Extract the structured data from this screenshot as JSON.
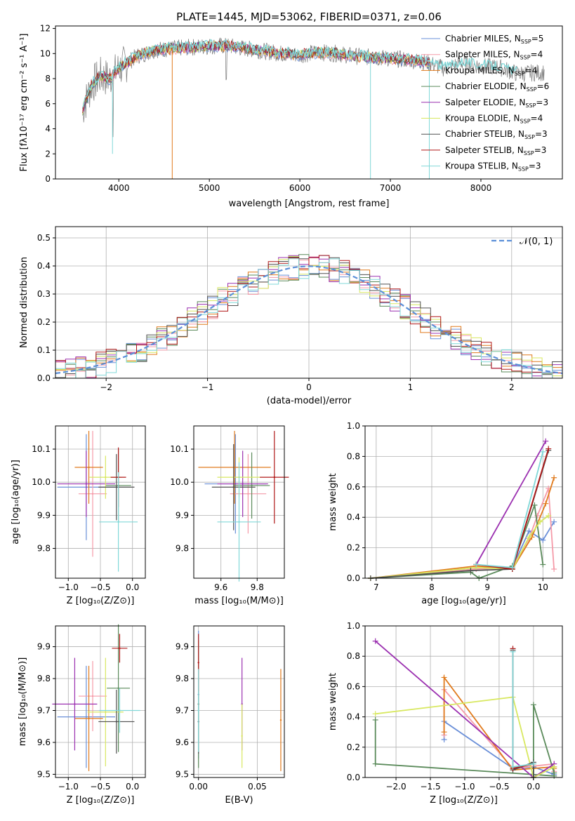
{
  "title": "PLATE=1445, MJD=53062, FIBERID=0371, z=0.06",
  "colors": [
    "#6a8fd8",
    "#f59aa8",
    "#e07a1c",
    "#5a8a5a",
    "#9b30b0",
    "#d8e860",
    "#505050",
    "#b01818",
    "#80d8d8"
  ],
  "chart_data": [
    {
      "id": "spectrum",
      "type": "line",
      "xlabel": "wavelength [Angstrom, rest frame]",
      "ylabel": "Flux [fλ10⁻¹⁷ erg cm⁻² s⁻¹ A⁻¹]",
      "xlim": [
        3300,
        8900
      ],
      "ylim": [
        0,
        12.2
      ],
      "xticks": [
        "4000",
        "5000",
        "6000",
        "7000",
        "8000"
      ],
      "xtick_values": [
        4000,
        5000,
        6000,
        7000,
        8000
      ],
      "yticks": [
        "0",
        "2",
        "4",
        "6",
        "8",
        "10",
        "12"
      ],
      "ytick_values": [
        0,
        2,
        4,
        6,
        8,
        10,
        12
      ],
      "grid": false,
      "legend_position": "top-right",
      "legend": [
        {
          "main": "Chabrier MILES, N",
          "sub": "SSP",
          "tail": "=5"
        },
        {
          "main": "Salpeter MILES, N",
          "sub": "SSP",
          "tail": "=4"
        },
        {
          "main": "Kroupa MILES, N",
          "sub": "SSP",
          "tail": "=4"
        },
        {
          "main": "Chabrier ELODIE, N",
          "sub": "SSP",
          "tail": "=6"
        },
        {
          "main": "Salpeter ELODIE, N",
          "sub": "SSP",
          "tail": "=3"
        },
        {
          "main": "Kroupa ELODIE, N",
          "sub": "SSP",
          "tail": "=4"
        },
        {
          "main": "Chabrier STELIB, N",
          "sub": "SSP",
          "tail": "=3"
        },
        {
          "main": "Salpeter STELIB, N",
          "sub": "SSP",
          "tail": "=3"
        },
        {
          "main": "Kroupa STELIB, N",
          "sub": "SSP",
          "tail": "=3"
        }
      ],
      "continuum_x": [
        3600,
        3700,
        3800,
        3900,
        4000,
        4200,
        4400,
        4600,
        4800,
        5000,
        5200,
        5400,
        5600,
        5800,
        6000,
        6200,
        6400,
        6600,
        6800,
        7000,
        7200,
        7400,
        7600,
        7800,
        8000,
        8200,
        8400,
        8700
      ],
      "continuum_y": [
        5.5,
        7.5,
        8.2,
        8.0,
        8.8,
        9.8,
        10.3,
        10.4,
        10.5,
        10.6,
        10.6,
        10.4,
        10.2,
        10.0,
        9.9,
        10.1,
        10.0,
        9.8,
        9.7,
        9.6,
        9.5,
        9.3,
        8.8,
        9.3,
        9.0,
        8.9,
        8.4,
        8.5
      ]
    },
    {
      "id": "residuals",
      "type": "bar",
      "xlabel": "(data-model)/error",
      "ylabel": "Normed distribution",
      "xlim": [
        -2.5,
        2.5
      ],
      "ylim": [
        0,
        0.54
      ],
      "xticks": [
        "−2",
        "−1",
        "0",
        "1",
        "2"
      ],
      "xtick_values": [
        -2,
        -1,
        0,
        1,
        2
      ],
      "yticks": [
        "0.0",
        "0.1",
        "0.2",
        "0.3",
        "0.4",
        "0.5"
      ],
      "ytick_values": [
        0,
        0.1,
        0.2,
        0.3,
        0.4,
        0.5
      ],
      "grid": true,
      "legend_position": "top-right",
      "legend_label": "𝒩(0, 1)",
      "gaussian_mu": 0,
      "gaussian_sigma": 1,
      "bin_width": 0.1
    },
    {
      "id": "age-vs-Z",
      "type": "scatter",
      "xlabel": "Z [log₁₀(Z/Z⊙)]",
      "ylabel": "age  [log₁₀(age/yr)]",
      "xlim": [
        -1.2,
        0.2
      ],
      "ylim": [
        9.71,
        10.17
      ],
      "xticks": [
        "−1.0",
        "−0.5",
        "0.0"
      ],
      "xtick_values": [
        -1.0,
        -0.5,
        0.0
      ],
      "yticks": [
        "9.8",
        "9.9",
        "10.0",
        "10.1"
      ],
      "ytick_values": [
        9.8,
        9.9,
        10.0,
        10.1
      ],
      "grid": true,
      "points": [
        {
          "x": -0.72,
          "y": 9.985,
          "xerr": 0.45,
          "yerr": 0.16
        },
        {
          "x": -0.62,
          "y": 9.965,
          "xerr": 0.22,
          "yerr": 0.19
        },
        {
          "x": -0.68,
          "y": 10.045,
          "xerr": 0.22,
          "yerr": 0.11
        },
        {
          "x": -0.22,
          "y": 9.99,
          "xerr": 0.2,
          "yerr": 0.11
        },
        {
          "x": -0.72,
          "y": 9.995,
          "xerr": 0.45,
          "yerr": 0.1
        },
        {
          "x": -0.42,
          "y": 10.015,
          "xerr": 0.25,
          "yerr": 0.065
        },
        {
          "x": -0.25,
          "y": 9.985,
          "xerr": 0.28,
          "yerr": 0.1
        },
        {
          "x": -0.22,
          "y": 10.015,
          "xerr": 0.12,
          "yerr": 0.09
        },
        {
          "x": -0.22,
          "y": 9.88,
          "xerr": 0.3,
          "yerr": 0.15
        }
      ]
    },
    {
      "id": "age-vs-mass",
      "type": "scatter",
      "xlabel": "mass [log₁₀(M/M⊙)]",
      "ylabel": "",
      "xlim": [
        9.45,
        9.95
      ],
      "ylim": [
        9.71,
        10.17
      ],
      "xticks": [
        "9.6",
        "9.8"
      ],
      "xtick_values": [
        9.6,
        9.8
      ],
      "yticks": [
        "9.8",
        "9.9",
        "10.0",
        "10.1"
      ],
      "ytick_values": [
        9.8,
        9.9,
        10.0,
        10.1
      ],
      "grid": true,
      "points": [
        {
          "x": 9.68,
          "y": 9.995,
          "xerr": 0.17,
          "yerr": 0.15
        },
        {
          "x": 9.75,
          "y": 9.965,
          "xerr": 0.1,
          "yerr": 0.12
        },
        {
          "x": 9.675,
          "y": 10.045,
          "xerr": 0.2,
          "yerr": 0.11
        },
        {
          "x": 9.77,
          "y": 9.99,
          "xerr": 0.1,
          "yerr": 0.1
        },
        {
          "x": 9.72,
          "y": 9.995,
          "xerr": 0.14,
          "yerr": 0.1
        },
        {
          "x": 9.7,
          "y": 10.015,
          "xerr": 0.12,
          "yerr": 0.06
        },
        {
          "x": 9.67,
          "y": 9.985,
          "xerr": 0.12,
          "yerr": 0.13
        },
        {
          "x": 9.895,
          "y": 10.015,
          "xerr": 0.08,
          "yerr": 0.14
        },
        {
          "x": 9.7,
          "y": 9.88,
          "xerr": 0.12,
          "yerr": 0.18
        }
      ]
    },
    {
      "id": "weight-vs-age",
      "type": "line",
      "xlabel": "age  [log₁₀(age/yr)]",
      "ylabel": "mass weight",
      "xlim": [
        6.8,
        10.35
      ],
      "ylim": [
        0,
        1.0
      ],
      "xticks": [
        "7",
        "8",
        "9",
        "10"
      ],
      "xtick_values": [
        7,
        8,
        9,
        10
      ],
      "yticks": [
        "0.0",
        "0.2",
        "0.4",
        "0.6",
        "0.8",
        "1.0"
      ],
      "ytick_values": [
        0,
        0.2,
        0.4,
        0.6,
        0.8,
        1.0
      ],
      "grid": true,
      "series": [
        {
          "x": [
            6.9,
            8.8,
            9.45,
            9.75,
            10.0,
            10.2
          ],
          "y": [
            0.0,
            0.06,
            0.07,
            0.31,
            0.25,
            0.37
          ]
        },
        {
          "x": [
            6.9,
            8.8,
            9.45,
            9.75,
            9.9,
            10.1,
            10.2
          ],
          "y": [
            0.0,
            0.06,
            0.07,
            0.26,
            0.41,
            0.59,
            0.06
          ]
        },
        {
          "x": [
            6.9,
            8.8,
            9.45,
            9.8,
            10.05,
            10.2
          ],
          "y": [
            0.0,
            0.08,
            0.06,
            0.27,
            0.49,
            0.66
          ]
        },
        {
          "x": [
            6.9,
            8.7,
            8.85,
            9.45,
            9.85,
            10.0
          ],
          "y": [
            0.0,
            0.04,
            0.0,
            0.08,
            0.48,
            0.09
          ]
        },
        {
          "x": [
            8.8,
            10.05
          ],
          "y": [
            0.09,
            0.9
          ]
        },
        {
          "x": [
            6.9,
            8.8,
            9.45,
            9.75,
            9.95,
            10.1
          ],
          "y": [
            0.0,
            0.07,
            0.06,
            0.27,
            0.37,
            0.41
          ]
        },
        {
          "x": [
            6.9,
            8.7,
            9.45,
            10.1
          ],
          "y": [
            0.0,
            0.05,
            0.06,
            0.84
          ]
        },
        {
          "x": [
            8.8,
            9.45,
            10.1
          ],
          "y": [
            0.09,
            0.06,
            0.85
          ]
        },
        {
          "x": [
            8.8,
            9.45,
            10.0
          ],
          "y": [
            0.09,
            0.07,
            0.83
          ]
        }
      ]
    },
    {
      "id": "mass-vs-Z",
      "type": "scatter",
      "xlabel": "Z [log₁₀(Z/Z⊙)]",
      "ylabel": "mass [log₁₀(M/M⊙)]",
      "xlim": [
        -1.2,
        0.2
      ],
      "ylim": [
        9.49,
        9.965
      ],
      "xticks": [
        "−1.0",
        "−0.5",
        "0.0"
      ],
      "xtick_values": [
        -1.0,
        -0.5,
        0.0
      ],
      "yticks": [
        "9.5",
        "9.6",
        "9.7",
        "9.8",
        "9.9"
      ],
      "ytick_values": [
        9.5,
        9.6,
        9.7,
        9.8,
        9.9
      ],
      "grid": true,
      "points": [
        {
          "x": -0.72,
          "y": 9.68,
          "xerr": 0.45,
          "yerr": 0.16
        },
        {
          "x": -0.62,
          "y": 9.745,
          "xerr": 0.22,
          "yerr": 0.11
        },
        {
          "x": -0.68,
          "y": 9.675,
          "xerr": 0.22,
          "yerr": 0.165
        },
        {
          "x": -0.22,
          "y": 9.77,
          "xerr": 0.18,
          "yerr": 0.2
        },
        {
          "x": -0.9,
          "y": 9.72,
          "xerr": 0.35,
          "yerr": 0.145
        },
        {
          "x": -0.42,
          "y": 9.695,
          "xerr": 0.28,
          "yerr": 0.17
        },
        {
          "x": -0.25,
          "y": 9.665,
          "xerr": 0.28,
          "yerr": 0.1
        },
        {
          "x": -0.2,
          "y": 9.895,
          "xerr": 0.12,
          "yerr": 0.045
        },
        {
          "x": -0.2,
          "y": 9.7,
          "xerr": 0.32,
          "yerr": 0.07
        }
      ]
    },
    {
      "id": "mass-vs-ebv",
      "type": "scatter",
      "xlabel": "E(B-V)",
      "ylabel": "",
      "xlim": [
        -0.004,
        0.073
      ],
      "ylim": [
        9.49,
        9.965
      ],
      "xticks": [
        "0.00",
        "0.05"
      ],
      "xtick_values": [
        0.0,
        0.05
      ],
      "yticks": [
        "9.5",
        "9.6",
        "9.7",
        "9.8",
        "9.9"
      ],
      "ytick_values": [
        9.5,
        9.6,
        9.7,
        9.8,
        9.9
      ],
      "grid": true,
      "points": [
        {
          "x": 0.0,
          "y": 9.75,
          "xerr": 0,
          "yerr": 0.2
        },
        {
          "x": 0.0,
          "y": 9.72,
          "xerr": 0,
          "yerr": 0.15
        },
        {
          "x": 0.07,
          "y": 9.67,
          "xerr": 0,
          "yerr": 0.16
        },
        {
          "x": 0.0,
          "y": 9.72,
          "xerr": 0,
          "yerr": 0.2
        },
        {
          "x": 0.037,
          "y": 9.72,
          "xerr": 0,
          "yerr": 0.145
        },
        {
          "x": 0.037,
          "y": 9.62,
          "xerr": 0,
          "yerr": 0.1
        },
        {
          "x": 0.0,
          "y": 9.665,
          "xerr": 0,
          "yerr": 0.1
        },
        {
          "x": 0.0,
          "y": 9.85,
          "xerr": 0,
          "yerr": 0.09
        },
        {
          "x": 0.0,
          "y": 9.7,
          "xerr": 0,
          "yerr": 0.13
        }
      ]
    },
    {
      "id": "weight-vs-Z",
      "type": "line",
      "xlabel": "Z [log₁₀(Z/Z⊙)]",
      "ylabel": "mass weight",
      "xlim": [
        -2.45,
        0.42
      ],
      "ylim": [
        0,
        1.0
      ],
      "xticks": [
        "−2.0",
        "−1.5",
        "−1.0",
        "−0.5",
        "0.0"
      ],
      "xtick_values": [
        -2.0,
        -1.5,
        -1.0,
        -0.5,
        0.0
      ],
      "yticks": [
        "0.0",
        "0.2",
        "0.4",
        "0.6",
        "0.8",
        "1.0"
      ],
      "ytick_values": [
        0,
        0.2,
        0.4,
        0.6,
        0.8,
        1.0
      ],
      "grid": true,
      "series": [
        {
          "x": [
            -1.3,
            -1.3,
            -0.3,
            0.0,
            0.3
          ],
          "y": [
            0.25,
            0.37,
            0.06,
            0.07,
            0.02
          ]
        },
        {
          "x": [
            -1.3,
            -1.3,
            -0.3,
            0.3,
            0.3
          ],
          "y": [
            0.28,
            0.58,
            0.06,
            0.09,
            0.04
          ]
        },
        {
          "x": [
            -1.3,
            -1.3,
            -0.3,
            0.3,
            0.3
          ],
          "y": [
            0.3,
            0.66,
            0.05,
            0.07,
            0.06
          ]
        },
        {
          "x": [
            -2.3,
            -2.3,
            0.3,
            0.3,
            0.0,
            0.0
          ],
          "y": [
            0.38,
            0.09,
            0.01,
            0.03,
            0.48,
            0.0
          ]
        },
        {
          "x": [
            -2.3,
            0.0,
            0.3
          ],
          "y": [
            0.9,
            0.0,
            0.09
          ]
        },
        {
          "x": [
            -2.3,
            -0.3,
            0.0,
            0.3
          ],
          "y": [
            0.42,
            0.53,
            0.0,
            0.07
          ]
        },
        {
          "x": [
            -0.3,
            -0.3,
            0.0,
            0.0
          ],
          "y": [
            0.84,
            0.05,
            0.1,
            0.0
          ]
        },
        {
          "x": [
            -0.3,
            -0.3,
            0.0
          ],
          "y": [
            0.85,
            0.06,
            0.09
          ]
        },
        {
          "x": [
            -0.3,
            -0.3,
            0.0
          ],
          "y": [
            0.83,
            0.07,
            0.09
          ]
        }
      ]
    }
  ]
}
